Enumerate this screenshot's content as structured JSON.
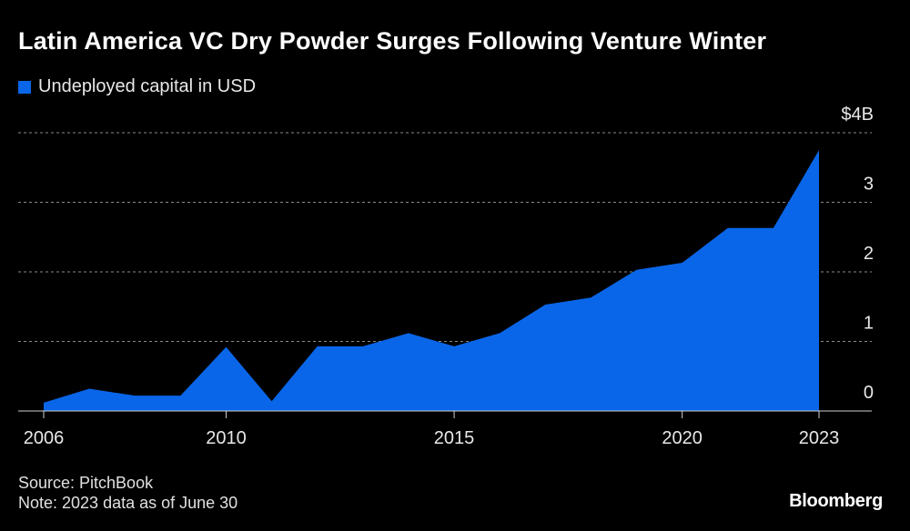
{
  "header": {
    "title": "Latin America VC Dry Powder Surges Following Venture Winter"
  },
  "legend": {
    "label": "Undeployed capital in USD"
  },
  "footer": {
    "source": "Source: PitchBook",
    "note": "Note: 2023 data as of June 30"
  },
  "brand": {
    "name": "Bloomberg"
  },
  "colors": {
    "background": "#000000",
    "series": "#0a66e8",
    "grid": "#8a8a8a",
    "text": "#ffffff"
  },
  "chart_data": {
    "type": "area",
    "title": "Latin America VC Dry Powder Surges Following Venture Winter",
    "series": [
      {
        "name": "Undeployed capital in USD",
        "x": [
          2006,
          2007,
          2008,
          2009,
          2010,
          2011,
          2012,
          2013,
          2014,
          2015,
          2016,
          2017,
          2018,
          2019,
          2020,
          2021,
          2022,
          2023
        ],
        "values": [
          0.12,
          0.32,
          0.22,
          0.22,
          0.92,
          0.14,
          0.93,
          0.93,
          1.12,
          0.93,
          1.12,
          1.53,
          1.63,
          2.03,
          2.13,
          2.63,
          2.63,
          3.75
        ]
      }
    ],
    "y_ticks": [
      0,
      1,
      2,
      3,
      4
    ],
    "y_tick_labels": [
      "0",
      "1",
      "2",
      "3",
      "$4B"
    ],
    "x_ticks": [
      2006,
      2010,
      2015,
      2020,
      2023
    ],
    "x_tick_labels": [
      "2006",
      "2010",
      "2015",
      "2020",
      "2023"
    ],
    "ylim": [
      0,
      4
    ],
    "xlim": [
      2006,
      2023
    ],
    "grid": true,
    "legend_position": "top-left"
  }
}
